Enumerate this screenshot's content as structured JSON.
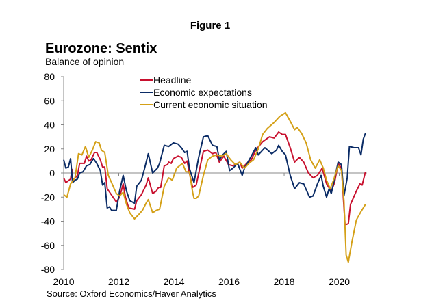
{
  "figure_label": "Figure 1",
  "chart_data": {
    "type": "line",
    "title": "Eurozone: Sentix",
    "subtitle": "Balance of opinion",
    "source": "Source: Oxford Economics/Haver Analytics",
    "xlabel": "",
    "ylabel": "",
    "xlim": [
      2010,
      2021
    ],
    "ylim": [
      -80,
      80
    ],
    "x_ticks": [
      2010,
      2012,
      2014,
      2016,
      2018,
      2020
    ],
    "y_ticks": [
      80,
      60,
      40,
      20,
      0,
      -20,
      -40,
      -60,
      -80
    ],
    "grid": false,
    "legend_position": "top-center",
    "series": [
      {
        "name": "Headline",
        "color": "#c8102e",
        "x": [
          2010.0,
          2010.08,
          2010.25,
          2010.3,
          2010.33,
          2010.5,
          2010.58,
          2010.75,
          2010.83,
          2010.91,
          2010.995,
          2011.12,
          2011.2,
          2011.33,
          2011.41,
          2011.49,
          2011.58,
          2011.7,
          2011.91,
          2012.03,
          2012.16,
          2012.24,
          2012.36,
          2012.57,
          2012.65,
          2012.82,
          2012.99,
          2013.07,
          2013.23,
          2013.36,
          2013.44,
          2013.52,
          2013.65,
          2013.77,
          2013.81,
          2013.9,
          2013.98,
          2014.15,
          2014.27,
          2014.39,
          2014.48,
          2014.56,
          2014.68,
          2014.81,
          2015.07,
          2015.23,
          2015.4,
          2015.52,
          2015.65,
          2015.81,
          2015.98,
          2016.14,
          2016.39,
          2016.48,
          2016.64,
          2016.81,
          2016.97,
          2017.22,
          2017.47,
          2017.64,
          2017.8,
          2017.93,
          2018.05,
          2018.22,
          2018.38,
          2018.55,
          2018.71,
          2018.88,
          2019.05,
          2019.21,
          2019.38,
          2019.54,
          2019.71,
          2019.83,
          2019.96,
          2020.08,
          2020.21,
          2020.33,
          2020.41,
          2020.62,
          2020.75,
          2020.83,
          2020.95
        ],
        "y": [
          -4,
          -8,
          -5,
          3,
          -6,
          -2,
          8,
          8,
          14,
          10,
          11,
          17,
          17,
          11,
          5,
          5,
          -13,
          -17,
          -24,
          -20,
          -9,
          -20,
          -29,
          -30,
          -23,
          -18,
          -10,
          -4,
          -17,
          -15,
          -12,
          -12,
          6,
          7,
          9,
          8,
          12,
          14,
          13,
          8,
          10,
          0,
          -12,
          -10,
          18,
          19,
          16,
          17,
          9,
          14,
          7,
          6,
          9,
          4,
          8,
          11,
          19,
          26,
          30,
          29,
          34,
          32,
          32,
          21,
          9,
          13,
          9,
          0,
          -4,
          -2,
          4,
          -9,
          -15,
          -8,
          8,
          4,
          -43,
          -42,
          -26,
          -15,
          -9,
          -10,
          1
        ]
      },
      {
        "name": "Economic expectations",
        "color": "#0b2c66",
        "x": [
          2010.0,
          2010.08,
          2010.17,
          2010.25,
          2010.32,
          2010.41,
          2010.5,
          2010.58,
          2010.7,
          2010.83,
          2010.95,
          2011.08,
          2011.2,
          2011.33,
          2011.41,
          2011.49,
          2011.58,
          2011.66,
          2011.74,
          2011.91,
          2012.03,
          2012.16,
          2012.28,
          2012.4,
          2012.57,
          2012.65,
          2012.82,
          2012.94,
          2013.07,
          2013.23,
          2013.4,
          2013.48,
          2013.65,
          2013.81,
          2013.98,
          2014.15,
          2014.27,
          2014.39,
          2014.48,
          2014.56,
          2014.73,
          2014.9,
          2015.07,
          2015.23,
          2015.4,
          2015.56,
          2015.65,
          2015.77,
          2015.9,
          2016.02,
          2016.14,
          2016.31,
          2016.48,
          2016.56,
          2016.81,
          2016.97,
          2017.06,
          2017.3,
          2017.55,
          2017.72,
          2017.8,
          2017.93,
          2018.05,
          2018.22,
          2018.38,
          2018.55,
          2018.71,
          2018.92,
          2019.05,
          2019.21,
          2019.34,
          2019.42,
          2019.54,
          2019.63,
          2019.71,
          2019.96,
          2020.08,
          2020.17,
          2020.29,
          2020.37,
          2020.54,
          2020.7,
          2020.79,
          2020.87,
          2020.95
        ],
        "y": [
          11,
          4,
          5,
          12,
          -8,
          -6,
          -5,
          0,
          1,
          6,
          7,
          12,
          8,
          2,
          -10,
          -8,
          -29,
          -28,
          -31,
          -31,
          -15,
          -2,
          -15,
          -23,
          -25,
          -11,
          -6,
          4,
          16,
          0,
          4,
          8,
          23,
          22,
          25,
          24,
          21,
          17,
          18,
          4,
          -8,
          13,
          30,
          31,
          23,
          22,
          11,
          15,
          18,
          2,
          4,
          8,
          -2,
          4,
          14,
          21,
          15,
          21,
          16,
          19,
          23,
          18,
          15,
          -2,
          -13,
          -8,
          -9,
          -20,
          -19,
          -9,
          -2,
          -11,
          -20,
          -13,
          -17,
          9,
          7,
          -19,
          -4,
          22,
          21,
          21,
          15,
          28,
          33
        ]
      },
      {
        "name": "Current economic situation",
        "color": "#d4a017",
        "x": [
          2010.0,
          2010.12,
          2010.25,
          2010.41,
          2010.54,
          2010.66,
          2010.79,
          2010.91,
          2011.04,
          2011.16,
          2011.29,
          2011.37,
          2011.49,
          2011.62,
          2011.74,
          2011.91,
          2012.03,
          2012.16,
          2012.28,
          2012.4,
          2012.57,
          2012.74,
          2012.86,
          2012.99,
          2013.07,
          2013.23,
          2013.36,
          2013.48,
          2013.65,
          2013.81,
          2013.94,
          2014.1,
          2014.31,
          2014.44,
          2014.56,
          2014.68,
          2014.73,
          2014.81,
          2014.9,
          2015.07,
          2015.23,
          2015.4,
          2015.56,
          2015.73,
          2015.9,
          2016.06,
          2016.23,
          2016.39,
          2016.56,
          2016.72,
          2016.89,
          2017.06,
          2017.22,
          2017.39,
          2017.64,
          2017.84,
          2018.05,
          2018.22,
          2018.38,
          2018.47,
          2018.63,
          2018.8,
          2018.96,
          2019.13,
          2019.29,
          2019.42,
          2019.54,
          2019.67,
          2019.79,
          2019.96,
          2020.08,
          2020.17,
          2020.25,
          2020.33,
          2020.46,
          2020.62,
          2020.79,
          2020.95
        ],
        "y": [
          -18,
          -20,
          -9,
          -4,
          16,
          15,
          22,
          13,
          19,
          26,
          25,
          19,
          17,
          -2,
          -8,
          -17,
          -19,
          -16,
          -26,
          -33,
          -38,
          -34,
          -31,
          -25,
          -22,
          -33,
          -31,
          -30,
          -11,
          -4,
          -6,
          4,
          8,
          1,
          1,
          -16,
          -21,
          -21,
          -19,
          -2,
          11,
          14,
          15,
          14,
          16,
          11,
          7,
          9,
          4,
          8,
          11,
          20,
          32,
          37,
          42,
          47,
          50,
          43,
          36,
          38,
          33,
          25,
          11,
          4,
          11,
          4,
          -6,
          -13,
          -6,
          6,
          2,
          -23,
          -68,
          -74,
          -57,
          -39,
          -32,
          -26
        ]
      }
    ]
  }
}
